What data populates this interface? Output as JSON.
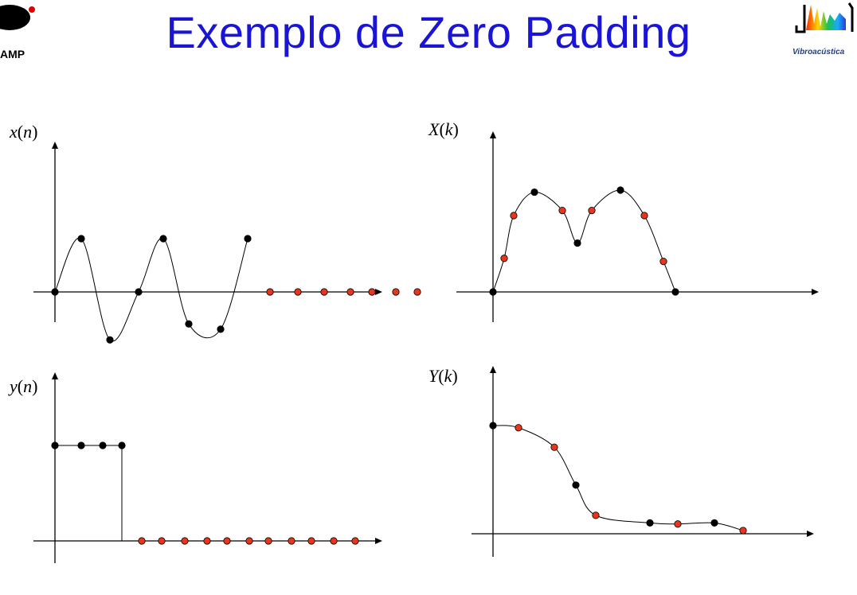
{
  "title": "Exemplo de Zero Padding",
  "logos": {
    "left_text": "AMP",
    "right_text": "Vibroacústica"
  },
  "colors": {
    "title": "#1a14d6",
    "original_point": "#000000",
    "padded_point": "#e8361c",
    "axis": "#000000"
  },
  "chart_data": [
    {
      "type": "scatter",
      "ylabel": "x(n)",
      "x": [
        0,
        1,
        2,
        3,
        4,
        5,
        6,
        7,
        8,
        9,
        10,
        11,
        12,
        13,
        14
      ],
      "values": [
        0,
        1,
        -0.9,
        0,
        1,
        -0.6,
        -0.7,
        1,
        0,
        0,
        0,
        0,
        0,
        0,
        0
      ],
      "padded": [
        false,
        false,
        false,
        false,
        false,
        false,
        false,
        false,
        true,
        true,
        true,
        true,
        true,
        true,
        true
      ],
      "connector": "smooth-curve"
    },
    {
      "type": "scatter",
      "ylabel": "X(k)",
      "x": [
        0,
        1,
        2,
        3,
        4,
        5,
        6,
        7,
        8,
        9,
        10
      ],
      "values": [
        0,
        0.33,
        0.75,
        0.98,
        0.8,
        0.48,
        0.8,
        1.0,
        0.75,
        0.3,
        0
      ],
      "padded": [
        false,
        true,
        true,
        false,
        true,
        false,
        true,
        false,
        true,
        true,
        false
      ],
      "connector": "smooth-curve"
    },
    {
      "type": "scatter",
      "ylabel": "y(n)",
      "x": [
        0,
        1,
        2,
        3,
        4,
        5,
        6,
        7,
        8,
        9,
        10,
        11,
        12,
        13,
        14
      ],
      "values": [
        1,
        1,
        1,
        1,
        0,
        0,
        0,
        0,
        0,
        0,
        0,
        0,
        0,
        0,
        0
      ],
      "padded": [
        false,
        false,
        false,
        false,
        true,
        true,
        true,
        true,
        true,
        true,
        true,
        true,
        true,
        true,
        true
      ],
      "connector": "step"
    },
    {
      "type": "scatter",
      "ylabel": "Y(k)",
      "x": [
        0,
        1,
        2,
        3,
        4,
        5,
        6,
        7,
        8
      ],
      "values": [
        1.0,
        0.98,
        0.8,
        0.45,
        0.17,
        0.1,
        0.09,
        0.1,
        0.03
      ],
      "padded": [
        false,
        true,
        true,
        false,
        true,
        false,
        true,
        false,
        true
      ],
      "connector": "smooth-curve"
    }
  ]
}
